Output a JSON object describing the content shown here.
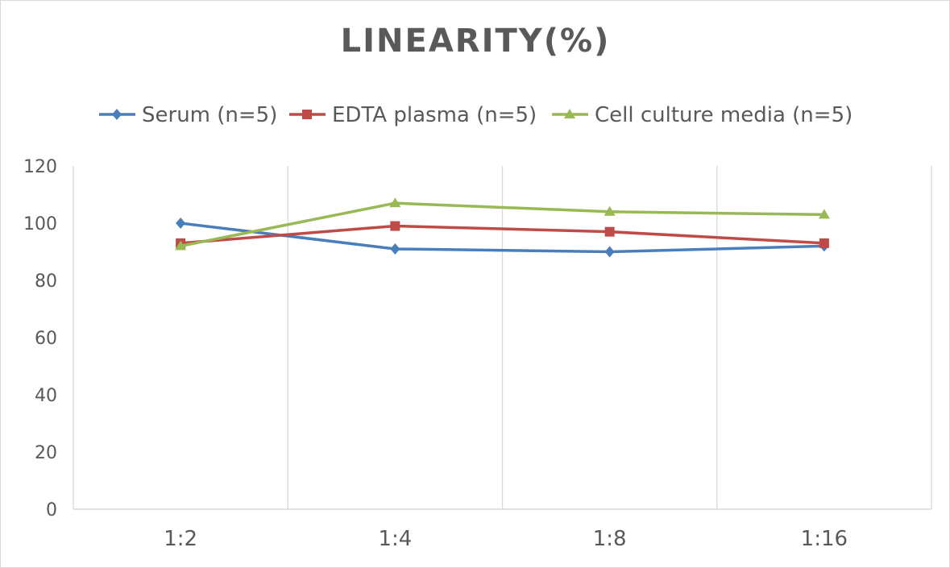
{
  "chart_data": {
    "type": "line",
    "title": "LINEARITY(%)",
    "xlabel": "",
    "ylabel": "",
    "categories": [
      "1:2",
      "1:4",
      "1:8",
      "1:16"
    ],
    "ylim": [
      0,
      120
    ],
    "yticks": [
      "0",
      "20",
      "40",
      "60",
      "80",
      "100",
      "120"
    ],
    "grid": "vertical",
    "legend": "top",
    "series": [
      {
        "name": "Serum (n=5)",
        "values": [
          100,
          91,
          90,
          92
        ],
        "color": "#4a7ebb",
        "marker": "diamond"
      },
      {
        "name": "EDTA plasma (n=5)",
        "values": [
          93,
          99,
          97,
          93
        ],
        "color": "#be4b48",
        "marker": "square"
      },
      {
        "name": "Cell culture media (n=5)",
        "values": [
          92,
          107,
          104,
          103
        ],
        "color": "#98b954",
        "marker": "triangle"
      }
    ]
  }
}
